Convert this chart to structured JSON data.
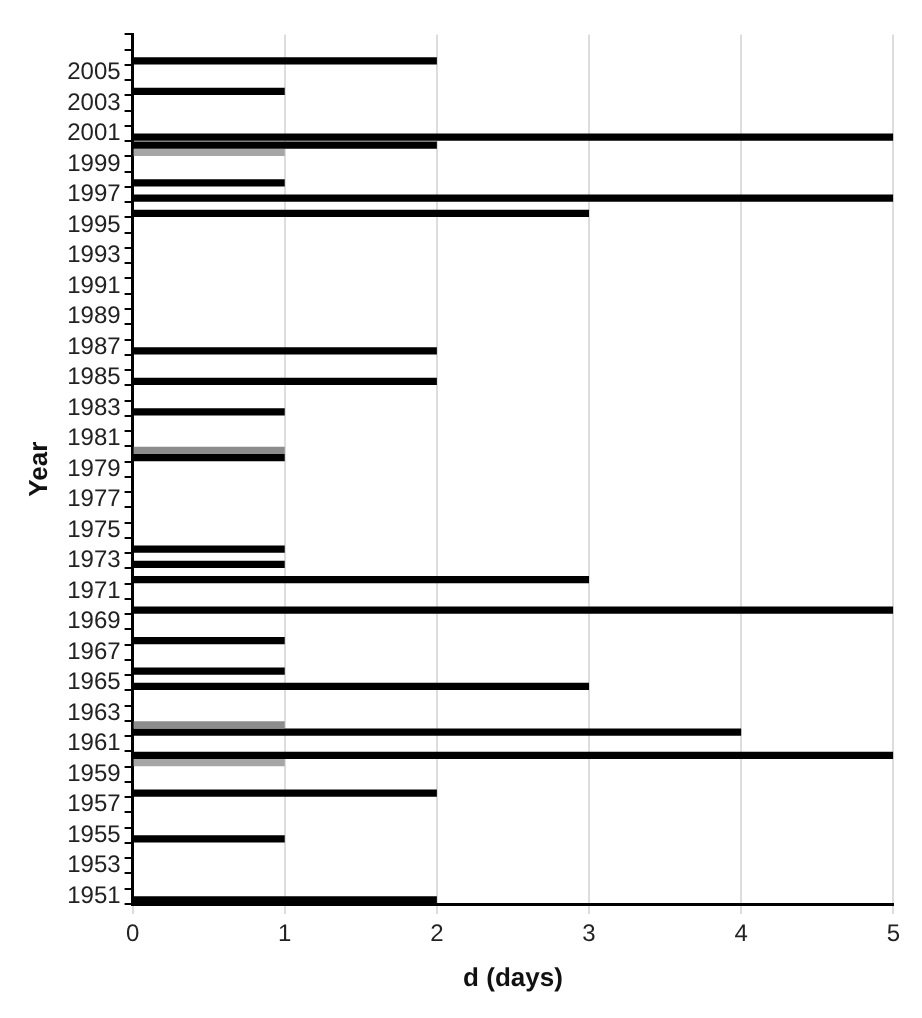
{
  "chart_data": {
    "type": "bar",
    "orientation": "horizontal",
    "xlabel": "d (days)",
    "ylabel": "Year",
    "categories": [
      null,
      null,
      "2005",
      null,
      "2003",
      null,
      "2001",
      null,
      "1999",
      null,
      "1997",
      null,
      "1995",
      null,
      "1993",
      null,
      "1991",
      null,
      "1989",
      null,
      "1987",
      null,
      "1985",
      null,
      "1983",
      null,
      "1981",
      null,
      "1979",
      null,
      "1977",
      null,
      "1975",
      null,
      "1973",
      null,
      "1971",
      null,
      "1969",
      null,
      "1967",
      null,
      "1965",
      null,
      "1963",
      null,
      "1961",
      null,
      "1959",
      null,
      "1957",
      null,
      "1955",
      null,
      "1953",
      null,
      "1951"
    ],
    "series": [
      {
        "values": [
          null,
          null,
          null,
          null,
          null,
          null,
          null,
          2,
          null,
          null,
          null,
          null,
          null,
          null,
          null,
          null,
          null,
          null,
          null,
          null,
          null,
          null,
          null,
          null,
          null,
          null,
          null,
          1,
          null,
          null,
          null,
          null,
          null,
          null,
          null,
          null,
          null,
          null,
          null,
          null,
          null,
          null,
          null,
          null,
          null,
          1,
          null,
          5,
          null,
          null,
          null,
          null,
          null,
          null,
          null,
          null,
          null
        ],
        "colors": [
          "#000000",
          "#000000",
          "#000000",
          "#000000",
          "#000000",
          "#000000",
          "#000000",
          "#000000",
          "#000000",
          "#000000",
          "#000000",
          "#000000",
          "#000000",
          "#000000",
          "#000000",
          "#000000",
          "#000000",
          "#000000",
          "#000000",
          "#000000",
          "#000000",
          "#000000",
          "#000000",
          "#000000",
          "#000000",
          "#000000",
          "#000000",
          "#8c8c8c",
          "#000000",
          "#000000",
          "#000000",
          "#000000",
          "#000000",
          "#000000",
          "#000000",
          "#000000",
          "#000000",
          "#000000",
          "#000000",
          "#000000",
          "#000000",
          "#000000",
          "#000000",
          "#000000",
          "#000000",
          "#8c8c8c",
          "#000000",
          "#000000",
          "#000000",
          "#000000",
          "#000000",
          "#000000",
          "#000000",
          "#000000",
          "#000000",
          "#000000",
          "#000000"
        ]
      },
      {
        "values": [
          null,
          2,
          null,
          1,
          null,
          null,
          5,
          1,
          null,
          1,
          5,
          3,
          null,
          null,
          null,
          null,
          null,
          null,
          null,
          null,
          2,
          null,
          2,
          null,
          1,
          null,
          null,
          1,
          null,
          null,
          null,
          null,
          null,
          1,
          1,
          3,
          null,
          5,
          null,
          1,
          null,
          1,
          3,
          null,
          null,
          4,
          null,
          1,
          null,
          2,
          null,
          null,
          1,
          null,
          null,
          null,
          2
        ],
        "colors": [
          "#000000",
          "#000000",
          "#000000",
          "#000000",
          "#000000",
          "#000000",
          "#000000",
          "#a6a6a6",
          "#000000",
          "#000000",
          "#000000",
          "#000000",
          "#000000",
          "#000000",
          "#000000",
          "#000000",
          "#000000",
          "#000000",
          "#000000",
          "#000000",
          "#000000",
          "#000000",
          "#000000",
          "#000000",
          "#000000",
          "#000000",
          "#000000",
          "#000000",
          "#000000",
          "#000000",
          "#000000",
          "#000000",
          "#000000",
          "#000000",
          "#000000",
          "#000000",
          "#000000",
          "#000000",
          "#000000",
          "#000000",
          "#000000",
          "#000000",
          "#000000",
          "#000000",
          "#000000",
          "#000000",
          "#000000",
          "#a6a6a6",
          "#000000",
          "#000000",
          "#000000",
          "#000000",
          "#000000",
          "#000000",
          "#000000",
          "#000000",
          "#000000"
        ]
      }
    ],
    "xlim": [
      0,
      5
    ],
    "xticks": [
      0,
      1,
      2,
      3,
      4,
      5
    ],
    "grid": "x",
    "legend": false
  }
}
